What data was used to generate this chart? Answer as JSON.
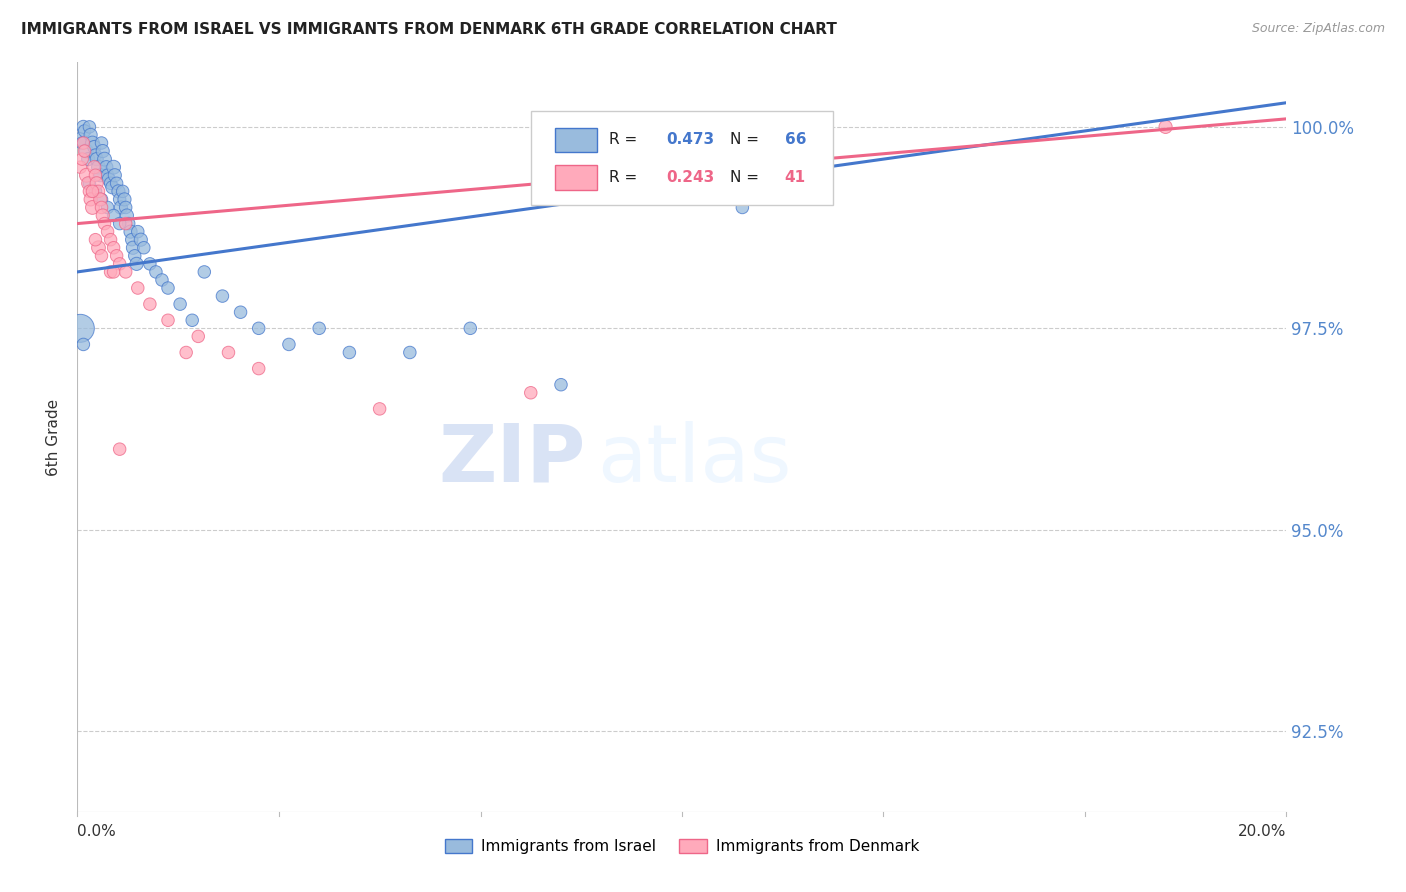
{
  "title": "IMMIGRANTS FROM ISRAEL VS IMMIGRANTS FROM DENMARK 6TH GRADE CORRELATION CHART",
  "source": "Source: ZipAtlas.com",
  "ylabel": "6th Grade",
  "series1_label": "Immigrants from Israel",
  "series2_label": "Immigrants from Denmark",
  "series1_color": "#99BBDD",
  "series2_color": "#FFAABB",
  "trendline1_color": "#4477CC",
  "trendline2_color": "#EE6688",
  "r1": 0.473,
  "n1": 66,
  "r2": 0.243,
  "n2": 41,
  "xlim": [
    0.0,
    20.0
  ],
  "ylim": [
    91.5,
    100.8
  ],
  "yticks": [
    92.5,
    95.0,
    97.5,
    100.0
  ],
  "watermark_zip": "ZIP",
  "watermark_atlas": "atlas",
  "trendline1_x0": 0.0,
  "trendline1_y0": 98.2,
  "trendline1_x1": 20.0,
  "trendline1_y1": 100.3,
  "trendline2_x0": 0.0,
  "trendline2_y0": 98.8,
  "trendline2_x1": 20.0,
  "trendline2_y1": 100.1,
  "series1_x": [
    0.05,
    0.08,
    0.1,
    0.12,
    0.15,
    0.18,
    0.2,
    0.22,
    0.25,
    0.28,
    0.3,
    0.32,
    0.35,
    0.38,
    0.4,
    0.42,
    0.45,
    0.48,
    0.5,
    0.52,
    0.55,
    0.58,
    0.6,
    0.62,
    0.65,
    0.68,
    0.7,
    0.72,
    0.75,
    0.78,
    0.8,
    0.82,
    0.85,
    0.88,
    0.9,
    0.92,
    0.95,
    0.98,
    1.0,
    1.05,
    1.1,
    1.2,
    1.3,
    1.4,
    1.5,
    1.7,
    1.9,
    2.1,
    2.4,
    2.7,
    3.0,
    3.5,
    4.0,
    4.5,
    5.5,
    6.5,
    8.0,
    11.0,
    0.05,
    0.1,
    0.2,
    0.3,
    0.4,
    0.5,
    0.6,
    0.7
  ],
  "series1_y": [
    99.85,
    99.8,
    100.0,
    99.95,
    99.7,
    99.6,
    100.0,
    99.9,
    99.8,
    99.75,
    99.65,
    99.6,
    99.5,
    99.4,
    99.8,
    99.7,
    99.6,
    99.5,
    99.4,
    99.35,
    99.3,
    99.25,
    99.5,
    99.4,
    99.3,
    99.2,
    99.1,
    99.0,
    99.2,
    99.1,
    99.0,
    98.9,
    98.8,
    98.7,
    98.6,
    98.5,
    98.4,
    98.3,
    98.7,
    98.6,
    98.5,
    98.3,
    98.2,
    98.1,
    98.0,
    97.8,
    97.6,
    98.2,
    97.9,
    97.7,
    97.5,
    97.3,
    97.5,
    97.2,
    97.2,
    97.5,
    96.8,
    99.0,
    97.5,
    97.3,
    99.3,
    99.2,
    99.1,
    99.0,
    98.9,
    98.8
  ],
  "series1_size": [
    20,
    18,
    20,
    18,
    22,
    20,
    18,
    20,
    22,
    20,
    18,
    20,
    22,
    20,
    18,
    20,
    22,
    20,
    18,
    20,
    18,
    20,
    22,
    20,
    18,
    20,
    18,
    20,
    18,
    20,
    18,
    20,
    18,
    20,
    18,
    20,
    18,
    20,
    18,
    20,
    18,
    18,
    18,
    18,
    18,
    18,
    18,
    18,
    18,
    18,
    18,
    18,
    18,
    18,
    18,
    18,
    18,
    18,
    90,
    18,
    18,
    18,
    18,
    18,
    18,
    18
  ],
  "series2_x": [
    0.05,
    0.08,
    0.1,
    0.12,
    0.15,
    0.18,
    0.2,
    0.22,
    0.25,
    0.28,
    0.3,
    0.32,
    0.35,
    0.38,
    0.4,
    0.42,
    0.45,
    0.5,
    0.55,
    0.6,
    0.65,
    0.7,
    0.8,
    1.0,
    1.2,
    1.5,
    2.0,
    2.5,
    3.0,
    0.35,
    0.55,
    5.0,
    7.5,
    0.3,
    0.4,
    0.6,
    18.0,
    0.8,
    1.8,
    0.25,
    0.7
  ],
  "series2_y": [
    99.5,
    99.6,
    99.8,
    99.7,
    99.4,
    99.3,
    99.2,
    99.1,
    99.0,
    99.5,
    99.4,
    99.3,
    99.2,
    99.1,
    99.0,
    98.9,
    98.8,
    98.7,
    98.6,
    98.5,
    98.4,
    98.3,
    98.2,
    98.0,
    97.8,
    97.6,
    97.4,
    97.2,
    97.0,
    98.5,
    98.2,
    96.5,
    96.7,
    98.6,
    98.4,
    98.2,
    100.0,
    98.8,
    97.2,
    99.2,
    96.0
  ],
  "series2_size": [
    18,
    18,
    18,
    18,
    22,
    20,
    18,
    20,
    22,
    20,
    18,
    20,
    18,
    20,
    18,
    20,
    18,
    18,
    18,
    18,
    18,
    18,
    18,
    18,
    18,
    18,
    18,
    18,
    18,
    22,
    18,
    18,
    18,
    18,
    18,
    18,
    20,
    18,
    18,
    18,
    18
  ]
}
